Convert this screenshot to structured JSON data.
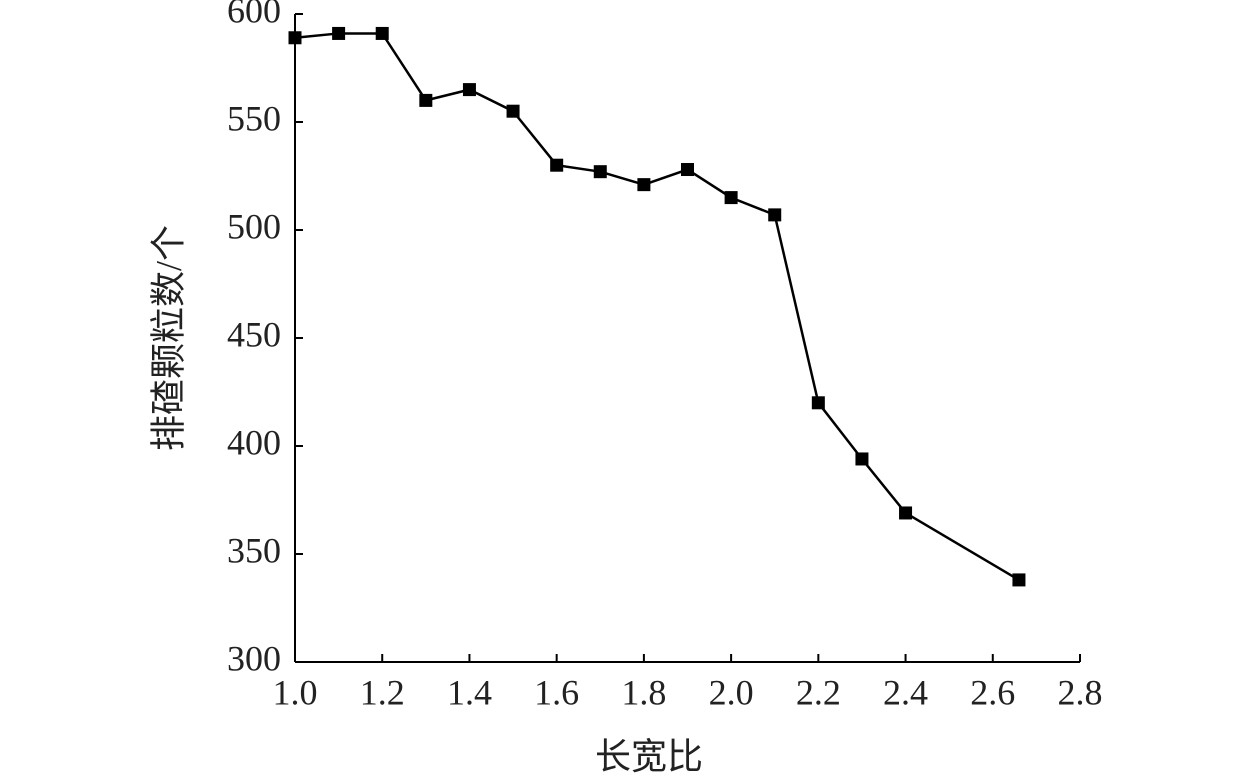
{
  "chart_data": {
    "type": "line",
    "xlabel": "长宽比",
    "ylabel": "排碴颗粒数/个",
    "x": [
      1.0,
      1.1,
      1.2,
      1.3,
      1.4,
      1.5,
      1.6,
      1.7,
      1.8,
      1.9,
      2.0,
      2.1,
      2.2,
      2.3,
      2.4,
      2.66
    ],
    "series": [
      {
        "color": "#000000",
        "values": [
          589,
          591,
          591,
          560,
          565,
          555,
          530,
          527,
          521,
          528,
          515,
          507,
          420,
          394,
          369,
          338
        ]
      }
    ],
    "xlim": [
      1.0,
      2.8
    ],
    "xticks": [
      {
        "value": 1,
        "label": "1.0"
      },
      1.2,
      1.4,
      1.6,
      1.8,
      {
        "value": 2,
        "label": "2.0"
      },
      2.2,
      2.4,
      2.6,
      2.8
    ],
    "ylim": [
      300,
      600
    ],
    "yticks": [
      300,
      350,
      400,
      450,
      500,
      550,
      600
    ]
  }
}
